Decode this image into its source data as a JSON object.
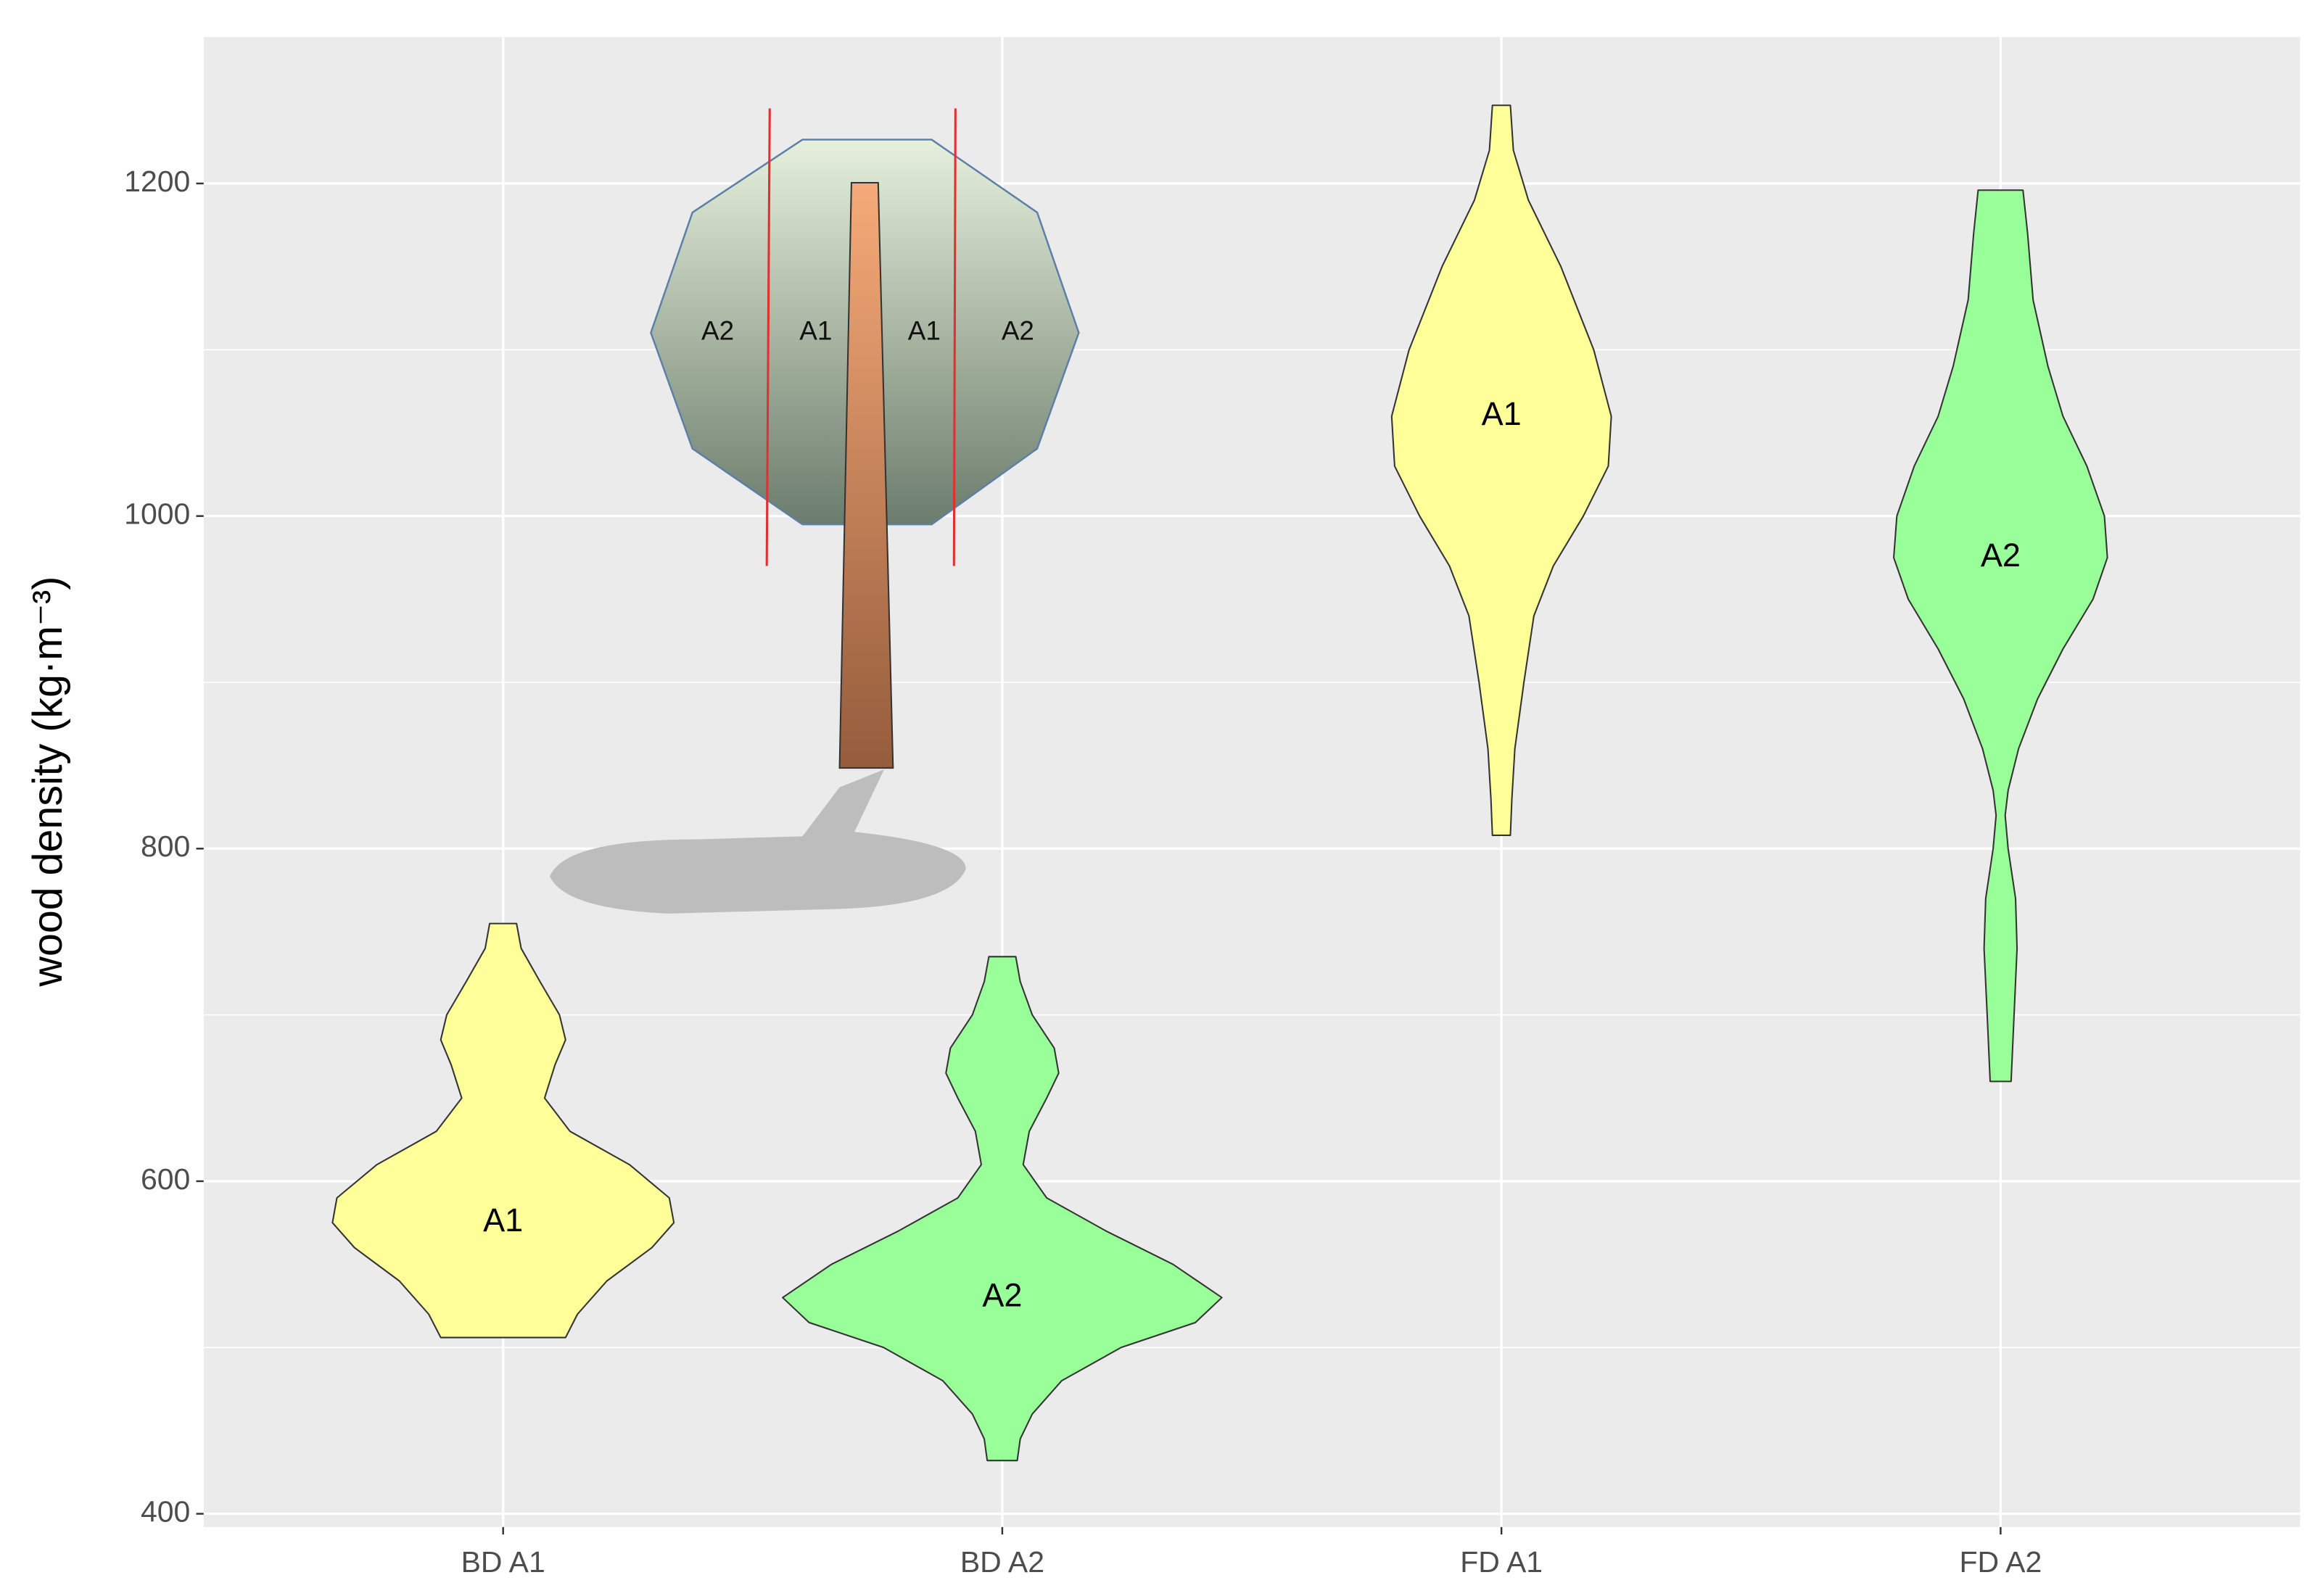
{
  "chart_data": {
    "type": "violin",
    "ylabel": "wood density (kg·m⁻³)",
    "categories": [
      "BD A1",
      "BD A2",
      "FD A1",
      "FD A2"
    ],
    "series": [
      {
        "label": "A1",
        "color": "#ffff99",
        "y": [
          755,
          740,
          720,
          700,
          685,
          670,
          650,
          630,
          610,
          590,
          575,
          560,
          540,
          520,
          506
        ],
        "width": [
          0.027,
          0.036,
          0.074,
          0.113,
          0.125,
          0.104,
          0.083,
          0.134,
          0.253,
          0.333,
          0.342,
          0.298,
          0.208,
          0.149,
          0.125
        ]
      },
      {
        "label": "A2",
        "color": "#99ff99",
        "y": [
          735,
          720,
          700,
          680,
          665,
          650,
          630,
          610,
          590,
          570,
          550,
          530,
          515,
          500,
          480,
          460,
          445,
          432
        ],
        "width": [
          0.027,
          0.036,
          0.06,
          0.104,
          0.113,
          0.089,
          0.054,
          0.042,
          0.089,
          0.208,
          0.342,
          0.44,
          0.387,
          0.238,
          0.119,
          0.06,
          0.036,
          0.03
        ]
      },
      {
        "label": "A1",
        "color": "#ffff99",
        "y": [
          1247,
          1220,
          1190,
          1150,
          1100,
          1060,
          1030,
          1000,
          970,
          940,
          900,
          860,
          830,
          808
        ],
        "width": [
          0.018,
          0.024,
          0.054,
          0.119,
          0.185,
          0.22,
          0.214,
          0.164,
          0.104,
          0.065,
          0.045,
          0.027,
          0.021,
          0.018
        ]
      },
      {
        "label": "A2",
        "color": "#99ff99",
        "y": [
          1196,
          1170,
          1130,
          1090,
          1060,
          1030,
          1000,
          975,
          950,
          920,
          890,
          860,
          835,
          820,
          800,
          770,
          740,
          700,
          660
        ],
        "width": [
          0.045,
          0.054,
          0.065,
          0.095,
          0.125,
          0.173,
          0.208,
          0.214,
          0.185,
          0.125,
          0.074,
          0.036,
          0.015,
          0.009,
          0.015,
          0.03,
          0.033,
          0.027,
          0.021
        ]
      }
    ],
    "ylim": [
      392,
      1288
    ],
    "yticks": [
      400,
      600,
      800,
      1000,
      1200
    ],
    "y_minor_ticks": [
      500,
      700,
      900,
      1100
    ],
    "grid": true,
    "annotations": [
      "A2",
      "A1",
      "A1",
      "A2"
    ]
  }
}
